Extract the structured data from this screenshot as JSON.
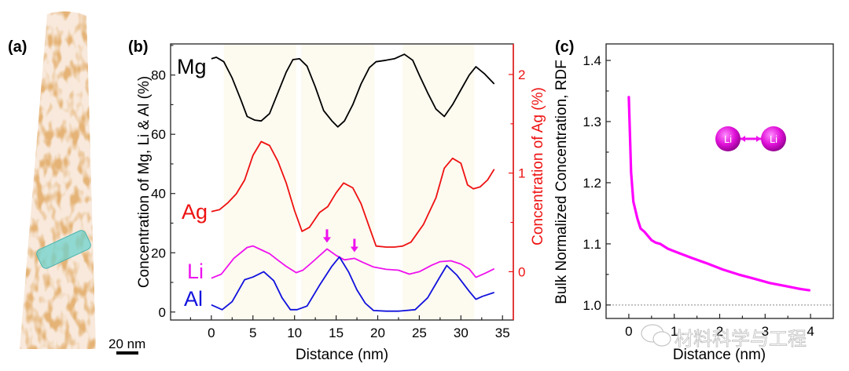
{
  "figure": {
    "panel_labels": [
      "(a)",
      "(b)",
      "(c)"
    ],
    "scale_bar_label": "20 nm",
    "watermark": "材料科学与工程"
  },
  "colors": {
    "Mg": "#000000",
    "Ag": "#ee1111",
    "Li": "#ee11ee",
    "Al": "#1111dd",
    "rdf": "#ff00ff",
    "band": "#fdfaf0",
    "tip": "#c8742f",
    "roi": "#6ed3cf"
  },
  "chart_data": [
    {
      "panel": "(b)",
      "type": "line",
      "title": "",
      "xlabel": "Distance (nm)",
      "ylabel": "Concentration of Mg, Li & Al (%)",
      "ylabel_right": "Concentration of Ag (%)",
      "xlim": [
        -4.9,
        36.3
      ],
      "ylim": [
        -2.7,
        90.5
      ],
      "ylim_right": [
        -0.49,
        2.31
      ],
      "x_ticks": [
        0,
        5,
        10,
        15,
        20,
        25,
        30,
        35
      ],
      "x_tick_labels": [
        "0",
        "5",
        "10",
        "15",
        "20",
        "25",
        "30",
        "35"
      ],
      "y_ticks": [
        0,
        20,
        40,
        60,
        80
      ],
      "y_tick_labels": [
        "0",
        "20",
        "40",
        "60",
        "80"
      ],
      "y_right_ticks": [
        0,
        1,
        2
      ],
      "y_right_tick_labels": [
        "0",
        "1",
        "2"
      ],
      "shaded_bands_nm": [
        [
          1.5,
          10.2
        ],
        [
          10.8,
          19.6
        ],
        [
          23.0,
          31.6
        ]
      ],
      "arrows_at_nm": [
        13.9,
        17.2
      ],
      "series": [
        {
          "name": "Mg",
          "axis": "left",
          "x": [
            0,
            0.6,
            1.5,
            2.5,
            3.5,
            4.3,
            5.2,
            6.0,
            7.0,
            8.0,
            9.0,
            9.8,
            10.6,
            11.5,
            12.5,
            13.5,
            14.5,
            15.2,
            16.0,
            17.0,
            18.0,
            19.0,
            19.8,
            21.0,
            22.0,
            23.2,
            24.2,
            25.0,
            26.0,
            27.0,
            28.0,
            29.0,
            30.0,
            31.0,
            31.8,
            32.8,
            34.0
          ],
          "values": [
            85.5,
            86.0,
            84.5,
            79.0,
            72.0,
            66.0,
            64.8,
            64.5,
            67.0,
            74.0,
            81.0,
            85.2,
            85.5,
            83.0,
            76.0,
            68.0,
            64.5,
            62.5,
            64.5,
            70.0,
            77.0,
            82.5,
            84.5,
            85.0,
            85.5,
            87.0,
            85.0,
            80.0,
            74.0,
            68.5,
            66.0,
            70.0,
            75.0,
            80.0,
            82.8,
            80.5,
            77.0
          ]
        },
        {
          "name": "Ag",
          "axis": "right",
          "x": [
            0,
            1.0,
            2.0,
            3.0,
            4.0,
            5.0,
            6.0,
            7.0,
            8.0,
            9.0,
            10.0,
            10.9,
            11.8,
            13.0,
            14.0,
            15.0,
            15.9,
            17.0,
            18.0,
            19.0,
            19.8,
            21.0,
            22.0,
            23.0,
            24.0,
            25.5,
            27.0,
            28.0,
            29.0,
            30.0,
            30.8,
            31.5,
            32.3,
            33.2,
            34.0
          ],
          "values": [
            0.61,
            0.63,
            0.7,
            0.79,
            0.93,
            1.18,
            1.32,
            1.28,
            1.12,
            0.9,
            0.62,
            0.41,
            0.45,
            0.6,
            0.66,
            0.8,
            0.9,
            0.85,
            0.69,
            0.45,
            0.26,
            0.25,
            0.25,
            0.26,
            0.3,
            0.48,
            0.75,
            1.05,
            1.15,
            1.1,
            0.88,
            0.84,
            0.86,
            0.93,
            1.04
          ]
        },
        {
          "name": "Li",
          "axis": "left",
          "x": [
            0,
            1.2,
            2.7,
            4.3,
            5.0,
            6.0,
            7.0,
            8.0,
            9.0,
            10.2,
            11.0,
            12.0,
            13.0,
            13.9,
            15.0,
            16.0,
            17.2,
            18.2,
            19.5,
            21.0,
            22.5,
            23.8,
            25.0,
            26.5,
            27.5,
            28.8,
            30.0,
            31.0,
            31.8,
            33.0,
            34.0
          ],
          "values": [
            11.4,
            12.8,
            18.1,
            21.8,
            22.3,
            21.0,
            19.7,
            17.5,
            15.4,
            13.3,
            14.1,
            16.5,
            19.0,
            21.3,
            19.1,
            17.6,
            18.1,
            16.8,
            15.2,
            14.4,
            14.1,
            12.8,
            13.6,
            15.8,
            17.0,
            17.3,
            16.2,
            14.5,
            11.7,
            13.2,
            14.6
          ]
        },
        {
          "name": "Al",
          "axis": "left",
          "x": [
            0,
            1.3,
            2.5,
            4.0,
            5.0,
            6.3,
            7.5,
            8.5,
            9.5,
            10.3,
            11.5,
            13.0,
            14.5,
            15.4,
            16.5,
            17.5,
            18.5,
            19.5,
            21.0,
            22.5,
            24.5,
            26.0,
            27.5,
            28.3,
            29.5,
            31.0,
            31.8,
            32.6,
            34.0
          ],
          "values": [
            2.4,
            0.8,
            3.5,
            10.9,
            11.8,
            13.6,
            10.6,
            4.8,
            0.8,
            0.8,
            2.0,
            9.0,
            15.5,
            18.6,
            13.5,
            7.5,
            3.0,
            0.5,
            0.3,
            0.3,
            0.8,
            4.8,
            12.0,
            15.7,
            12.5,
            7.0,
            4.3,
            5.3,
            6.6
          ]
        }
      ],
      "series_labels": [
        "Mg",
        "Ag",
        "Li",
        "Al"
      ]
    },
    {
      "panel": "(c)",
      "type": "line",
      "title": "",
      "xlabel": "Distance (nm)",
      "ylabel": "Bulk Normalized Concentration, RDF",
      "xlim": [
        -0.5,
        4.5
      ],
      "ylim": [
        0.978,
        1.427
      ],
      "x_ticks": [
        0,
        1,
        2,
        3,
        4
      ],
      "x_tick_labels": [
        "0",
        "1",
        "2",
        "3",
        "4"
      ],
      "y_ticks": [
        1.0,
        1.1,
        1.2,
        1.3,
        1.4
      ],
      "y_tick_labels": [
        "1.0",
        "1.1",
        "1.2",
        "1.3",
        "1.4"
      ],
      "reference_line": 1.0,
      "inset_label": [
        "Li",
        "Li"
      ],
      "series": [
        {
          "name": "Li-Li RDF",
          "x": [
            0.0,
            0.05,
            0.1,
            0.19,
            0.26,
            0.34,
            0.5,
            0.59,
            0.69,
            0.86,
            1.03,
            1.38,
            1.72,
            2.07,
            2.41,
            2.76,
            3.1,
            3.45,
            3.79,
            3.97
          ],
          "values": [
            1.34,
            1.217,
            1.169,
            1.141,
            1.125,
            1.12,
            1.106,
            1.102,
            1.1,
            1.092,
            1.087,
            1.077,
            1.068,
            1.058,
            1.05,
            1.043,
            1.036,
            1.031,
            1.026,
            1.024
          ]
        }
      ]
    }
  ]
}
